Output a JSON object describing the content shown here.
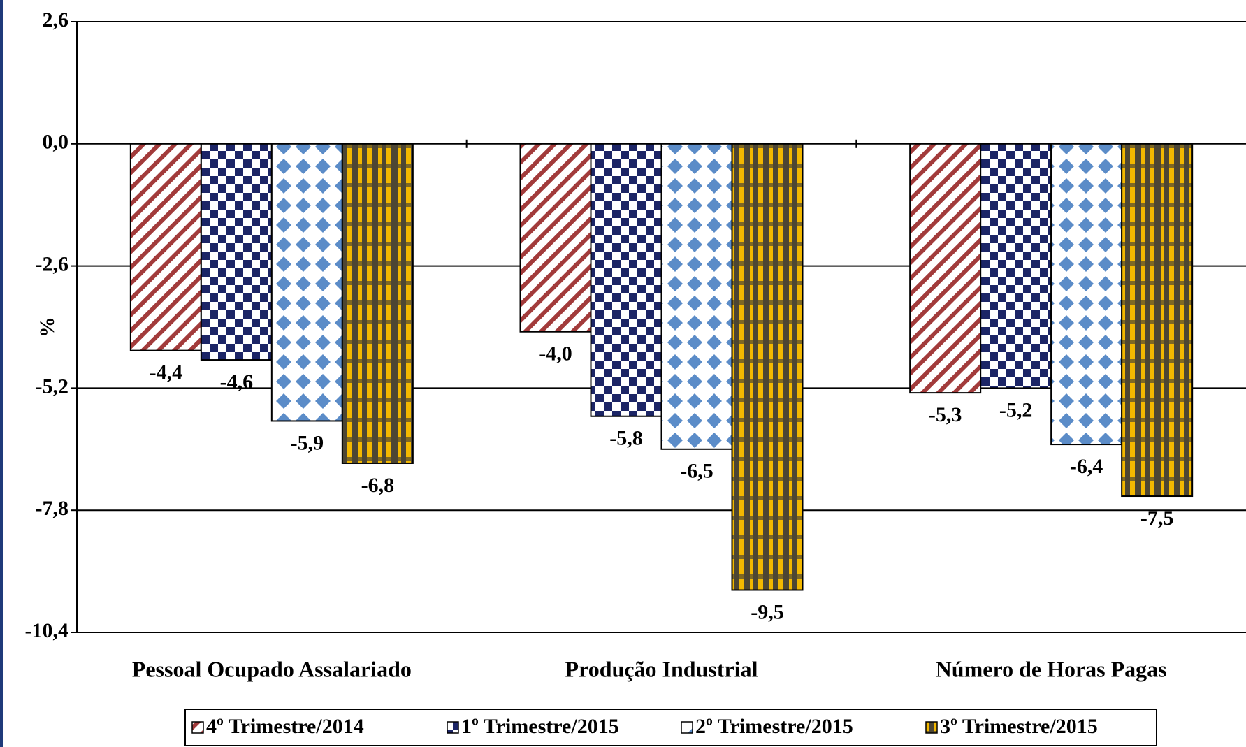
{
  "chart_data": {
    "type": "bar",
    "y_label": "%",
    "categories": [
      "Pessoal Ocupado Assalariado",
      "Produção Industrial",
      "Número de Horas Pagas"
    ],
    "series": [
      {
        "name": "4º Trimestre/2014",
        "color": "#a23b3b",
        "values": [
          -4.4,
          -4.0,
          -5.3
        ],
        "value_labels": [
          "-4,4",
          "-4,0",
          "-5,3"
        ]
      },
      {
        "name": "1º Trimestre/2015",
        "color": "#1c2566",
        "values": [
          -4.6,
          -5.8,
          -5.2
        ],
        "value_labels": [
          "-4,6",
          "-5,8",
          "-5,2"
        ]
      },
      {
        "name": "2º Trimestre/2015",
        "color": "#5b8cc8",
        "values": [
          -5.9,
          -6.5,
          -6.4
        ],
        "value_labels": [
          "-5,9",
          "-6,5",
          "-6,4"
        ]
      },
      {
        "name": "3º Trimestre/2015",
        "color": "#f3b800",
        "values": [
          -6.8,
          -9.5,
          -7.5
        ],
        "value_labels": [
          "-6,8",
          "-9,5",
          "-7,5"
        ]
      }
    ],
    "ylim": [
      -10.4,
      2.6
    ],
    "yticks": [
      {
        "value": 2.6,
        "label": "2,6"
      },
      {
        "value": 0,
        "label": "0,0"
      },
      {
        "value": -2.6,
        "label": "-2,6"
      },
      {
        "value": -5.2,
        "label": "-5,2"
      },
      {
        "value": -7.8,
        "label": "-7,8"
      },
      {
        "value": -10.4,
        "label": "-10,4"
      }
    ],
    "grid": true
  }
}
